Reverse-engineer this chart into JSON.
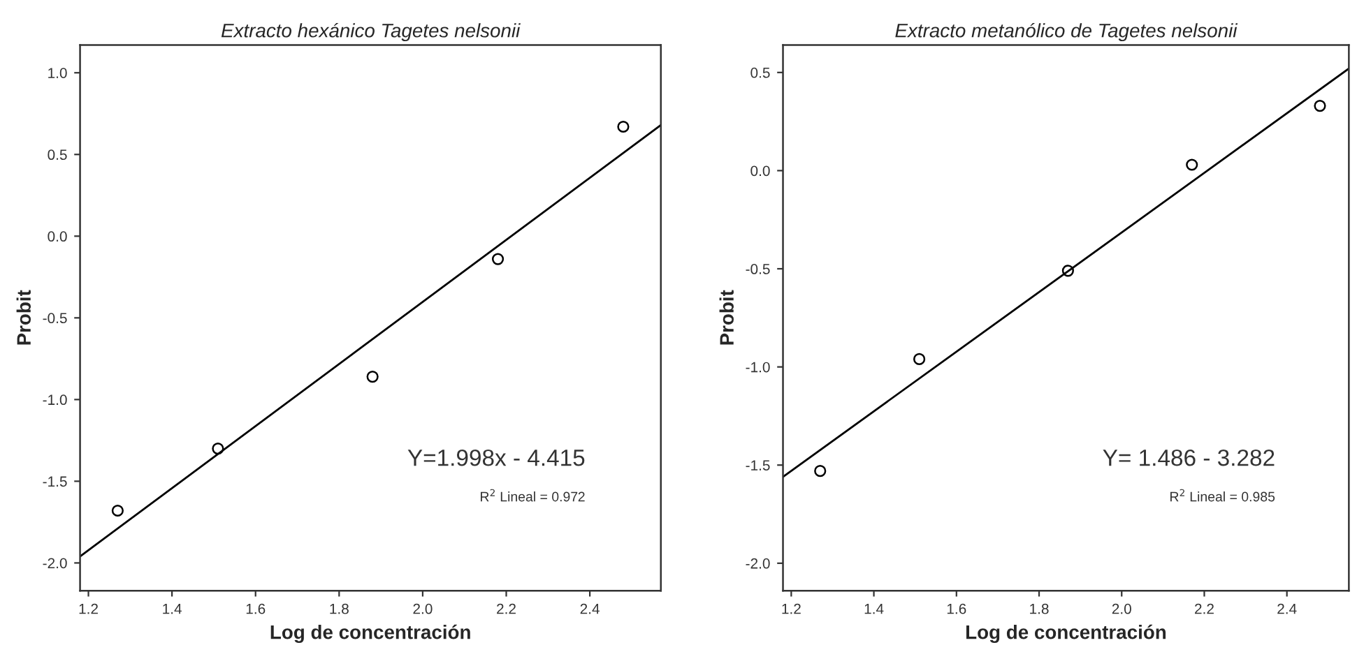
{
  "chart_data": [
    {
      "type": "scatter",
      "title": "Extracto hexánico Tagetes nelsonii",
      "xlabel": "Log de concentración",
      "ylabel": "Probit",
      "xlim": [
        1.18,
        2.57
      ],
      "xticks": [
        1.2,
        1.4,
        1.6,
        1.8,
        {
          "value": 2,
          "label": "2.0"
        },
        2.2,
        2.4
      ],
      "ylim": [
        -2.17,
        1.17
      ],
      "yticks": [
        {
          "value": -2,
          "label": "-2.0"
        },
        -1.5,
        {
          "value": -1,
          "label": "-1.0"
        },
        -0.5,
        {
          "value": 0,
          "label": "0.0"
        },
        0.5,
        {
          "value": 1,
          "label": "1.0"
        }
      ],
      "grid": false,
      "series": [
        {
          "marker": "circle",
          "color": "#000000",
          "x": [
            1.27,
            1.51,
            1.88,
            2.18,
            2.48
          ],
          "values": [
            -1.68,
            -1.3,
            -0.86,
            -0.14,
            0.67
          ]
        },
        {
          "type": "line",
          "color": "#000000",
          "x": [
            1.18,
            2.57
          ],
          "values": [
            -1.96,
            0.68
          ]
        }
      ],
      "annotations": [
        "Y=1.998x - 4.415",
        "R$^{2}$ Lineal = 0.972"
      ]
    },
    {
      "type": "scatter",
      "title": "Extracto metanólico de Tagetes nelsonii",
      "xlabel": "Log de concentración",
      "ylabel": "Probit",
      "xlim": [
        1.18,
        2.55
      ],
      "xticks": [
        1.2,
        1.4,
        1.6,
        1.8,
        {
          "value": 2,
          "label": "2.0"
        },
        2.2,
        2.4
      ],
      "ylim": [
        -2.14,
        0.64
      ],
      "yticks": [
        {
          "value": -2,
          "label": "-2.0"
        },
        -1.5,
        {
          "value": -1,
          "label": "-1.0"
        },
        -0.5,
        {
          "value": 0,
          "label": "0.0"
        },
        0.5
      ],
      "grid": false,
      "series": [
        {
          "marker": "circle",
          "color": "#000000",
          "x": [
            1.27,
            1.51,
            1.87,
            2.17,
            2.48
          ],
          "values": [
            -1.53,
            -0.96,
            -0.51,
            0.03,
            0.33
          ]
        },
        {
          "type": "line",
          "color": "#000000",
          "x": [
            1.18,
            2.55
          ],
          "values": [
            -1.56,
            0.52
          ]
        }
      ],
      "annotations": [
        "Y= 1.486 - 3.282",
        "R$^{2}$ Lineal = 0.985"
      ]
    }
  ]
}
